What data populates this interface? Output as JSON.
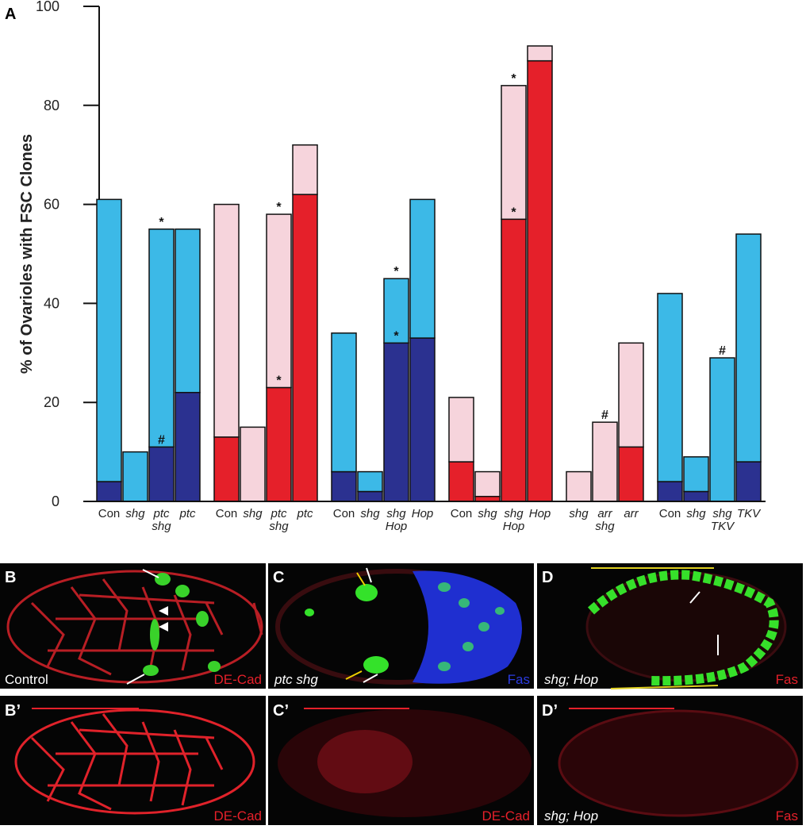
{
  "chart_data": {
    "type": "stacked-bar",
    "panel_label": "A",
    "ylabel": "% of Ovarioles with FSC Clones",
    "ylim": [
      0,
      100
    ],
    "yticks": [
      0,
      20,
      40,
      60,
      80,
      100
    ],
    "groups": [
      4,
      4,
      4,
      4,
      3,
      4
    ],
    "categories": [
      [
        "Con"
      ],
      [
        "shg"
      ],
      [
        "ptc",
        "shg"
      ],
      [
        "ptc"
      ],
      [
        "Con"
      ],
      [
        "shg"
      ],
      [
        "ptc",
        "shg"
      ],
      [
        "ptc"
      ],
      [
        "Con"
      ],
      [
        "shg"
      ],
      [
        "shg",
        "Hop"
      ],
      [
        "Hop"
      ],
      [
        "Con"
      ],
      [
        "shg"
      ],
      [
        "shg",
        "Hop"
      ],
      [
        "Hop"
      ],
      [
        "shg"
      ],
      [
        "arr",
        "shg"
      ],
      [
        "arr"
      ],
      [
        "Con"
      ],
      [
        "shg"
      ],
      [
        "shg",
        "TKV"
      ],
      [
        "TKV"
      ]
    ],
    "italic": [
      false,
      true,
      true,
      true,
      false,
      true,
      true,
      true,
      false,
      true,
      true,
      true,
      false,
      true,
      true,
      true,
      true,
      true,
      true,
      false,
      true,
      true,
      true
    ],
    "series": [
      {
        "values": [
          4,
          0,
          11,
          22,
          13,
          0,
          23,
          62,
          6,
          2,
          32,
          33,
          8,
          1,
          57,
          89,
          0,
          0,
          11,
          4,
          2,
          0,
          8
        ],
        "colors": [
          "#2b3190",
          "#2b3190",
          "#2b3190",
          "#2b3190",
          "#e5202a",
          "#e5202a",
          "#e5202a",
          "#e5202a",
          "#2b3190",
          "#2b3190",
          "#2b3190",
          "#2b3190",
          "#e5202a",
          "#e5202a",
          "#e5202a",
          "#e5202a",
          "#e5202a",
          "#e5202a",
          "#e5202a",
          "#2b3190",
          "#2b3190",
          "#2b3190",
          "#2b3190"
        ]
      },
      {
        "values": [
          57,
          10,
          44,
          33,
          47,
          15,
          35,
          10,
          28,
          4,
          13,
          28,
          13,
          5,
          27,
          3,
          6,
          16,
          21,
          38,
          7,
          29,
          46
        ],
        "colors": [
          "#3cb9e7",
          "#3cb9e7",
          "#3cb9e7",
          "#3cb9e7",
          "#f6d4dc",
          "#f6d4dc",
          "#f6d4dc",
          "#f6d4dc",
          "#3cb9e7",
          "#3cb9e7",
          "#3cb9e7",
          "#3cb9e7",
          "#f6d4dc",
          "#f6d4dc",
          "#f6d4dc",
          "#f6d4dc",
          "#f6d4dc",
          "#f6d4dc",
          "#f6d4dc",
          "#3cb9e7",
          "#3cb9e7",
          "#3cb9e7",
          "#3cb9e7"
        ]
      }
    ],
    "annotations": [
      {
        "text": "*",
        "bar": 2,
        "value": 55
      },
      {
        "text": "#",
        "bar": 2,
        "value": 11
      },
      {
        "text": "*",
        "bar": 6,
        "value": 58
      },
      {
        "text": "*",
        "bar": 6,
        "value": 23
      },
      {
        "text": "*",
        "bar": 10,
        "value": 45
      },
      {
        "text": "*",
        "bar": 10,
        "value": 32
      },
      {
        "text": "*",
        "bar": 14,
        "value": 84
      },
      {
        "text": "*",
        "bar": 14,
        "value": 57
      },
      {
        "text": "#",
        "bar": 17,
        "value": 16
      },
      {
        "text": "#",
        "bar": 21,
        "value": 29
      }
    ]
  },
  "panels": {
    "B": {
      "label": "B",
      "left": "Control",
      "right": "DE-Cad"
    },
    "C": {
      "label": "C",
      "left": "ptc shg",
      "right": "Fas"
    },
    "D": {
      "label": "D",
      "left": "shg; Hop",
      "right": "Fas"
    },
    "B2": {
      "label": "B’",
      "right": "DE-Cad"
    },
    "C2": {
      "label": "C’",
      "right": "DE-Cad"
    },
    "D2": {
      "label": "D’",
      "left": "shg; Hop",
      "right": "Fas"
    }
  }
}
